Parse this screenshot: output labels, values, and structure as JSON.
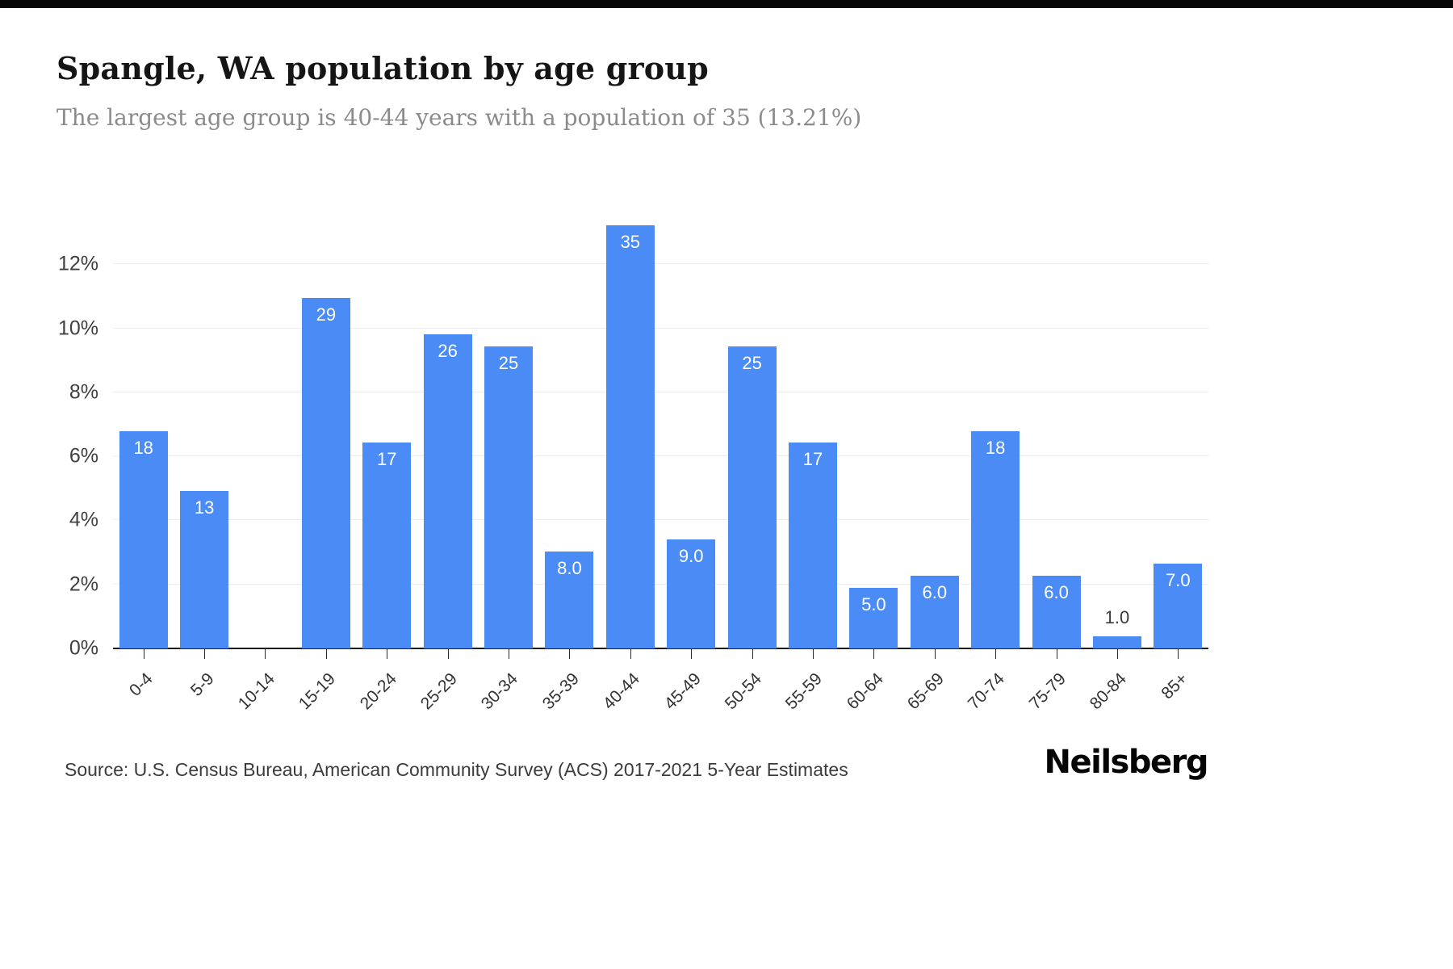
{
  "header": {
    "title": "Spangle, WA population by age group",
    "subtitle": "The largest age group is 40-44 years with a population of 35 (13.21%)"
  },
  "chart_data": {
    "type": "bar",
    "title": "Spangle, WA population by age group",
    "xlabel": "",
    "ylabel": "",
    "ylim": [
      0,
      14
    ],
    "grid": true,
    "legend": "none",
    "bar_color": "#4b8bf5",
    "yticks": [
      {
        "label": "0%",
        "value": 0
      },
      {
        "label": "2%",
        "value": 2
      },
      {
        "label": "4%",
        "value": 4
      },
      {
        "label": "6%",
        "value": 6
      },
      {
        "label": "8%",
        "value": 8
      },
      {
        "label": "10%",
        "value": 10
      },
      {
        "label": "12%",
        "value": 12
      }
    ],
    "categories": [
      "0-4",
      "5-9",
      "10-14",
      "15-19",
      "20-24",
      "25-29",
      "30-34",
      "35-39",
      "40-44",
      "45-49",
      "50-54",
      "55-59",
      "60-64",
      "65-69",
      "70-74",
      "75-79",
      "80-84",
      "85+"
    ],
    "values": [
      18,
      13,
      0,
      29,
      17,
      26,
      25,
      8,
      35,
      9,
      25,
      17,
      5,
      6,
      18,
      6,
      1,
      7
    ],
    "bar_labels": [
      "18",
      "13",
      "",
      "29",
      "17",
      "26",
      "25",
      "8.0",
      "35",
      "9.0",
      "25",
      "17",
      "5.0",
      "6.0",
      "18",
      "6.0",
      "1.0",
      "7.0"
    ],
    "percents": [
      6.79,
      4.91,
      0,
      10.94,
      6.42,
      9.81,
      9.43,
      3.02,
      13.21,
      3.4,
      9.43,
      6.42,
      1.89,
      2.26,
      6.79,
      2.26,
      0.38,
      2.64
    ]
  },
  "footer": {
    "source": "Source: U.S. Census Bureau, American Community Survey (ACS) 2017-2021 5-Year Estimates",
    "brand": "Neilsberg"
  }
}
